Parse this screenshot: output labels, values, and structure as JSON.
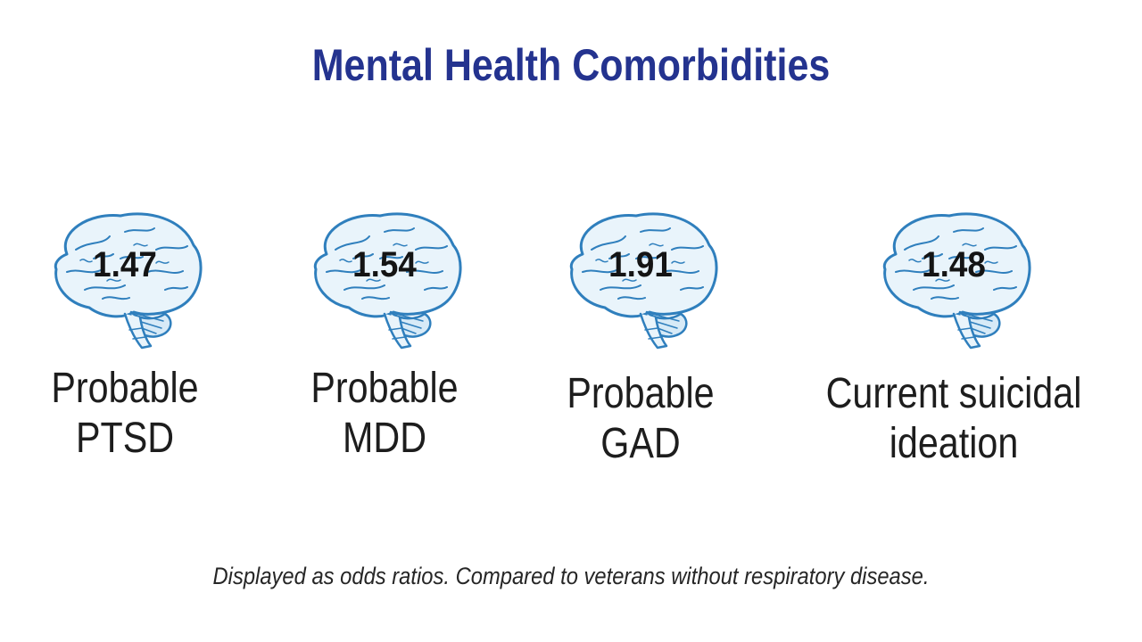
{
  "title": "Mental Health Comorbidities",
  "items": [
    {
      "value": "1.47",
      "label_line1": "Probable",
      "label_line2": "PTSD",
      "icon": "brain-icon"
    },
    {
      "value": "1.54",
      "label_line1": "Probable",
      "label_line2": "MDD",
      "icon": "brain-icon"
    },
    {
      "value": "1.91",
      "label_line1": "Probable",
      "label_line2": "GAD",
      "icon": "brain-icon"
    },
    {
      "value": "1.48",
      "label_line1": "Current suicidal",
      "label_line2": "ideation",
      "icon": "brain-icon"
    }
  ],
  "footnote": "Displayed as odds ratios. Compared to veterans without respiratory disease.",
  "colors": {
    "title": "#24338f",
    "brain_stroke": "#2f7fbd",
    "brain_fill": "#e9f4fb",
    "text": "#1d1d1d"
  }
}
